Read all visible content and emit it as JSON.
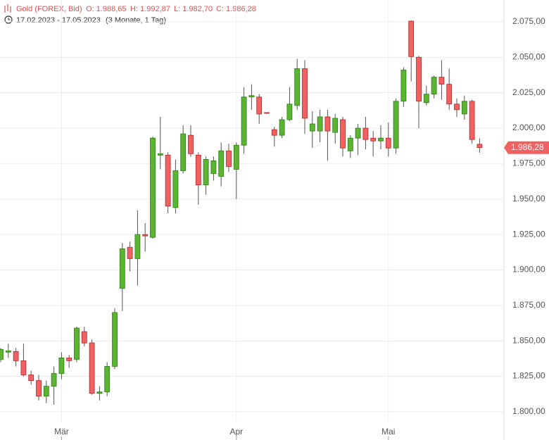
{
  "chart_data": {
    "type": "candlestick",
    "title": "Gold (FOREX, Bid)",
    "ohlc_labels": [
      "O: 1.988,65",
      "H: 1.992,87",
      "L: 1.982,70",
      "C: 1.986,28"
    ],
    "date_range": "17.02.2023 - 17.05.2023",
    "period": "(3 Monate, 1 Tag)",
    "open": [
      1837,
      1842,
      1842.5,
      1836,
      1826,
      1822,
      1811,
      1818,
      1827,
      1838,
      1837,
      1856.5,
      1848.6,
      1813,
      1814,
      1832,
      1887,
      1916,
      1908,
      1925,
      1923,
      1981,
      1981,
      1944,
      1970,
      1995,
      1981,
      1960,
      1968,
      1966,
      1984,
      1971,
      1988,
      2022,
      2022,
      2011,
      1999,
      1995,
      2006,
      2016,
      2042,
      1998,
      1998,
      2008,
      1997,
      2006,
      1984,
      1993,
      2000,
      1993,
      1991,
      1993,
      1986,
      2019,
      2075.5,
      2050,
      2018,
      2024,
      2036,
      2031,
      2017,
      2010,
      2019,
      1988.65
    ],
    "high": [
      1845,
      1848,
      1845,
      1848,
      1829,
      1826,
      1822,
      1832,
      1842,
      1840,
      1860,
      1860,
      1851,
      1818,
      1835,
      1873,
      1919,
      1920,
      1942,
      1933,
      1994,
      2008,
      1983,
      1978,
      2002,
      2002,
      1983,
      1980,
      1980,
      1990,
      1989,
      1990,
      2029,
      2031,
      2024,
      2011,
      2001,
      2008,
      2029,
      2049,
      2048,
      2012,
      2013,
      2013,
      2010,
      2008,
      1995,
      2003,
      2008,
      1998,
      2002,
      2004,
      2021,
      2043,
      2076,
      2051,
      2030,
      2037,
      2048,
      2042,
      2021,
      2023,
      2020,
      1992.87
    ],
    "low": [
      1835,
      1838,
      1832,
      1825,
      1819,
      1808,
      1806,
      1805,
      1823,
      1831,
      1835,
      1846,
      1812,
      1808,
      1811,
      1830,
      1871,
      1899,
      1889,
      1913,
      1922,
      1971,
      1940,
      1940,
      1968,
      1980,
      1946,
      1953,
      1963,
      1959,
      1969,
      1950,
      1982,
      2013,
      2003,
      2010,
      1987,
      1993,
      2005,
      2013,
      1996,
      1986,
      1990,
      1977,
      1989,
      1980,
      1979,
      1981,
      1985,
      1980,
      1985,
      1980,
      1982,
      2015,
      2033,
      2000,
      2016,
      2021,
      2020,
      2013,
      2008,
      2006,
      1989,
      1982.7
    ],
    "close": [
      1844,
      1843,
      1836,
      1826,
      1822,
      1811,
      1818,
      1827,
      1838,
      1836,
      1859,
      1848.5,
      1813,
      1814,
      1832,
      1870,
      1915,
      1908,
      1925,
      1924,
      1993,
      1982,
      1945,
      1970,
      1996,
      1982,
      1960,
      1978,
      1977,
      1984,
      1973,
      1988,
      2022,
      2023,
      2010,
      2010.5,
      1995,
      2006,
      2017,
      2042,
      2007,
      2003,
      2008,
      1998,
      2007,
      1986,
      1993,
      2000,
      1992,
      1991,
      1993,
      1986,
      2019,
      2041,
      2050.5,
      2019,
      2024,
      2036,
      2031,
      2017,
      2013,
      2019,
      1992,
      1986.28
    ],
    "last_label": "1.986,28",
    "up_color": "#5cb531",
    "down_color": "#f06262",
    "ylim": [
      1792.5,
      2090.4
    ],
    "yticks": [
      {
        "value": 1800,
        "label": "1.800,00"
      },
      {
        "value": 1825,
        "label": "1.825,00"
      },
      {
        "value": 1850,
        "label": "1.850,00"
      },
      {
        "value": 1875,
        "label": "1.875,00"
      },
      {
        "value": 1900,
        "label": "1.900,00"
      },
      {
        "value": 1925,
        "label": "1.925,00"
      },
      {
        "value": 1950,
        "label": "1.950,00"
      },
      {
        "value": 1975,
        "label": "1.975,00"
      },
      {
        "value": 2000,
        "label": "2.000,00"
      },
      {
        "value": 2025,
        "label": "2.025,00"
      },
      {
        "value": 2050,
        "label": "2.050,00"
      },
      {
        "value": 2075,
        "label": "2.075,00"
      }
    ],
    "xticks": [
      {
        "value": 8,
        "label": "Mär"
      },
      {
        "value": 31,
        "label": "Apr"
      },
      {
        "value": 51,
        "label": "Mai"
      }
    ],
    "grid": true
  }
}
